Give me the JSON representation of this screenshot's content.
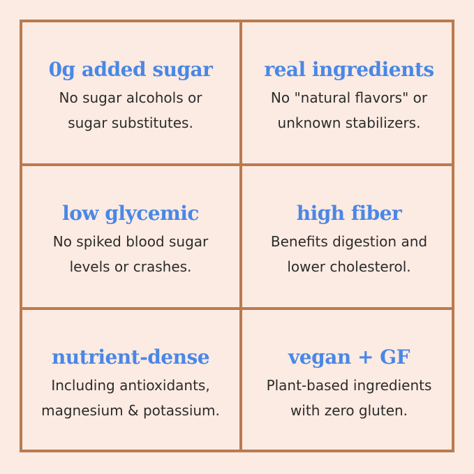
{
  "cells": [
    {
      "title": "0g added sugar",
      "lines": [
        "No sugar alcohols or",
        "sugar substitutes."
      ]
    },
    {
      "title": "real ingredients",
      "lines": [
        "No \"natural flavors\" or",
        "unknown stabilizers."
      ]
    },
    {
      "title": "low glycemic",
      "lines": [
        "No spiked blood sugar",
        "levels or crashes."
      ]
    },
    {
      "title": "high fiber",
      "lines": [
        "Benefits digestion and",
        "lower cholesterol."
      ]
    },
    {
      "title": "nutrient-dense",
      "lines": [
        "Including antioxidants,",
        "magnesium & potassium."
      ]
    },
    {
      "title": "vegan + GF",
      "lines": [
        "Plant-based ingredients",
        "with zero gluten."
      ]
    }
  ]
}
